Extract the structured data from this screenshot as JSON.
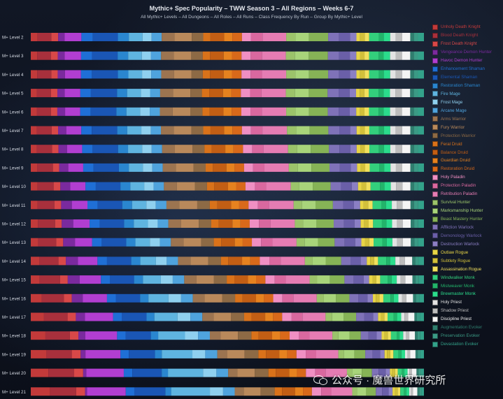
{
  "chart_data": {
    "type": "bar",
    "orientation": "horizontal",
    "stacked": true,
    "normalized": true,
    "title": "Mythic+ Spec Popularity – TWW Season 3 – All Regions – Weeks 6-7",
    "subtitle": "All Mythic+ Levels – All Dungeons – All Roles – All Runs – Class Frequency By Run – Group By Mythic+ Level",
    "legend_position": "right",
    "categories": [
      "M+ Level 2",
      "M+ Level 3",
      "M+ Level 4",
      "M+ Level 5",
      "M+ Level 6",
      "M+ Level 7",
      "M+ Level 8",
      "M+ Level 9",
      "M+ Level 10",
      "M+ Level 11",
      "M+ Level 12",
      "M+ Level 13",
      "M+ Level 14",
      "M+ Level 15",
      "M+ Level 16",
      "M+ Level 17",
      "M+ Level 18",
      "M+ Level 19",
      "M+ Level 20",
      "M+ Level 21"
    ],
    "series": [
      {
        "name": "Unholy Death Knight",
        "color": "#c23a3a",
        "values": [
          1.5,
          1.4,
          1.4,
          1.3,
          1.3,
          1.3,
          1.3,
          1.4,
          1.5,
          1.5,
          1.6,
          1.7,
          2.0,
          2.1,
          2.6,
          3.2,
          3.6,
          3.9,
          4.5,
          5.0
        ]
      },
      {
        "name": "Blood Death Knight",
        "color": "#a8303c",
        "values": [
          3.0,
          3.0,
          3.1,
          3.1,
          3.1,
          3.3,
          3.4,
          3.5,
          3.6,
          3.8,
          3.9,
          4.1,
          4.4,
          4.8,
          5.3,
          5.7,
          6.0,
          6.3,
          6.6,
          6.7
        ]
      },
      {
        "name": "Frost Death Knight",
        "color": "#d84848",
        "values": [
          1.5,
          1.5,
          1.4,
          1.4,
          1.4,
          1.4,
          1.4,
          1.4,
          1.5,
          1.5,
          1.5,
          1.6,
          1.7,
          1.8,
          1.9,
          2.0,
          2.1,
          2.2,
          2.3,
          2.3
        ]
      },
      {
        "name": "Vengeance Demon Hunter",
        "color": "#7a2a9e",
        "values": [
          1.4,
          1.5,
          1.6,
          1.6,
          1.7,
          1.8,
          1.9,
          2.0,
          2.2,
          2.4,
          2.6,
          2.7,
          2.8,
          2.8,
          2.6,
          2.2,
          1.7,
          1.2,
          0.8,
          0.5
        ]
      },
      {
        "name": "Havoc Demon Hunter",
        "color": "#b13ed1",
        "values": [
          3.7,
          3.6,
          3.5,
          3.4,
          3.3,
          3.3,
          3.3,
          3.3,
          3.4,
          3.5,
          3.7,
          3.9,
          4.5,
          5.0,
          5.8,
          6.8,
          7.8,
          8.7,
          9.6,
          10.0
        ]
      },
      {
        "name": "Enhancement Shaman",
        "color": "#1f6fd6",
        "values": [
          2.5,
          2.4,
          2.4,
          2.3,
          2.3,
          2.3,
          2.3,
          2.3,
          2.3,
          2.3,
          2.3,
          2.2,
          2.2,
          2.1,
          2.1,
          2.1,
          2.1,
          2.1,
          2.2,
          2.2
        ]
      },
      {
        "name": "Elemental Shaman",
        "color": "#1a56b5",
        "values": [
          5.5,
          5.6,
          5.7,
          5.7,
          5.6,
          5.6,
          5.6,
          5.6,
          5.5,
          5.5,
          5.5,
          5.6,
          5.6,
          5.7,
          5.8,
          6.0,
          6.2,
          6.5,
          7.5,
          8.0
        ]
      },
      {
        "name": "Restoration Shaman",
        "color": "#2a86cf",
        "values": [
          2.4,
          2.3,
          2.3,
          2.2,
          2.2,
          2.2,
          2.2,
          2.2,
          2.2,
          2.2,
          2.2,
          2.1,
          2.1,
          2.1,
          2.0,
          1.9,
          1.8,
          1.7,
          1.6,
          1.5
        ]
      },
      {
        "name": "Fire Mage",
        "color": "#5fb4e0",
        "values": [
          3.0,
          3.0,
          3.0,
          3.0,
          3.0,
          3.1,
          3.1,
          3.1,
          3.1,
          3.2,
          3.2,
          3.3,
          3.6,
          4.2,
          4.8,
          5.6,
          6.6,
          7.6,
          9.0,
          10.0
        ]
      },
      {
        "name": "Frost Mage",
        "color": "#8fd0ef",
        "values": [
          2.0,
          2.0,
          2.0,
          2.0,
          2.1,
          2.1,
          2.1,
          2.1,
          2.1,
          2.1,
          2.2,
          2.3,
          2.5,
          2.8,
          3.0,
          3.1,
          3.2,
          3.2,
          3.4,
          3.4
        ]
      },
      {
        "name": "Arcane Mage",
        "color": "#4fa3dd",
        "values": [
          2.2,
          2.2,
          2.2,
          2.2,
          2.2,
          2.2,
          2.3,
          2.3,
          2.3,
          2.4,
          2.4,
          2.5,
          2.6,
          2.7,
          2.8,
          2.9,
          2.9,
          3.0,
          3.0,
          3.0
        ]
      },
      {
        "name": "Arms Warrior",
        "color": "#9c7450",
        "values": [
          2.8,
          2.8,
          2.8,
          2.8,
          2.8,
          2.8,
          2.8,
          2.9,
          2.9,
          2.9,
          2.9,
          2.9,
          2.9,
          2.9,
          2.8,
          2.7,
          2.6,
          2.5,
          2.4,
          2.3
        ]
      },
      {
        "name": "Fury Warrior",
        "color": "#b9895b",
        "values": [
          3.8,
          3.8,
          3.8,
          3.8,
          3.9,
          3.9,
          3.9,
          3.9,
          4.0,
          4.0,
          4.0,
          4.0,
          4.1,
          4.1,
          4.2,
          4.2,
          4.3,
          4.3,
          4.4,
          4.4
        ]
      },
      {
        "name": "Protection Warrior",
        "color": "#8d6a45",
        "values": [
          2.5,
          2.5,
          2.5,
          2.5,
          2.6,
          2.6,
          2.6,
          2.7,
          2.7,
          2.8,
          2.8,
          2.9,
          2.9,
          3.0,
          3.1,
          3.2,
          3.3,
          3.4,
          3.5,
          3.6
        ]
      },
      {
        "name": "Feral Druid",
        "color": "#d9721a",
        "values": [
          1.6,
          1.6,
          1.6,
          1.6,
          1.6,
          1.6,
          1.6,
          1.6,
          1.6,
          1.7,
          1.7,
          1.7,
          1.7,
          1.8,
          1.8,
          1.8,
          1.8,
          1.9,
          1.9,
          1.9
        ]
      },
      {
        "name": "Balance Druid",
        "color": "#c25e14",
        "values": [
          3.0,
          3.0,
          3.0,
          3.0,
          3.0,
          3.0,
          3.0,
          3.0,
          3.1,
          3.1,
          3.1,
          3.1,
          3.2,
          3.2,
          3.2,
          3.3,
          3.3,
          3.3,
          3.4,
          3.4
        ]
      },
      {
        "name": "Guardian Druid",
        "color": "#e6821f",
        "values": [
          1.8,
          1.8,
          1.8,
          1.8,
          1.8,
          1.8,
          1.8,
          1.8,
          1.8,
          1.8,
          1.8,
          1.8,
          1.9,
          1.9,
          1.9,
          1.9,
          2.0,
          2.0,
          2.0,
          2.0
        ]
      },
      {
        "name": "Restoration Druid",
        "color": "#d8691a",
        "values": [
          2.1,
          2.1,
          2.1,
          2.1,
          2.1,
          2.1,
          2.1,
          2.1,
          2.1,
          2.1,
          2.1,
          2.1,
          2.2,
          2.2,
          2.2,
          2.2,
          2.3,
          2.3,
          2.3,
          2.3
        ]
      },
      {
        "name": "Holy Paladin",
        "color": "#f08fc3",
        "values": [
          2.0,
          2.0,
          2.0,
          2.0,
          2.0,
          2.0,
          2.0,
          2.0,
          2.1,
          2.1,
          2.1,
          2.1,
          2.2,
          2.2,
          2.2,
          2.3,
          2.3,
          2.3,
          2.4,
          2.4
        ]
      },
      {
        "name": "Protection Paladin",
        "color": "#d9689f",
        "values": [
          2.5,
          2.5,
          2.5,
          2.5,
          2.5,
          2.5,
          2.5,
          2.5,
          2.5,
          2.5,
          2.6,
          2.6,
          2.6,
          2.6,
          2.6,
          2.6,
          2.6,
          2.6,
          2.6,
          2.6
        ]
      },
      {
        "name": "Retribution Paladin",
        "color": "#e57cb3",
        "values": [
          5.2,
          5.2,
          5.3,
          5.3,
          5.3,
          5.4,
          5.4,
          5.4,
          5.5,
          5.5,
          5.5,
          5.5,
          5.6,
          5.6,
          5.6,
          5.6,
          5.6,
          5.5,
          5.5,
          5.4
        ]
      },
      {
        "name": "Survival Hunter",
        "color": "#9bc36a",
        "values": [
          2.0,
          2.0,
          2.0,
          2.0,
          2.0,
          2.0,
          2.0,
          2.0,
          1.9,
          1.9,
          1.9,
          1.9,
          1.8,
          1.8,
          1.7,
          1.6,
          1.5,
          1.4,
          1.3,
          1.2
        ]
      },
      {
        "name": "Marksmanship Hunter",
        "color": "#a8d47a",
        "values": [
          3.0,
          3.0,
          3.0,
          3.0,
          3.0,
          3.0,
          3.0,
          3.0,
          3.0,
          3.0,
          3.0,
          3.0,
          3.0,
          3.0,
          2.9,
          2.8,
          2.7,
          2.6,
          2.5,
          2.4
        ]
      },
      {
        "name": "Beast Mastery Hunter",
        "color": "#86b356",
        "values": [
          4.2,
          4.2,
          4.2,
          4.1,
          4.1,
          4.1,
          4.0,
          4.0,
          4.0,
          3.9,
          3.9,
          3.8,
          3.6,
          3.4,
          3.2,
          3.0,
          2.8,
          2.7,
          2.6,
          2.5
        ]
      },
      {
        "name": "Affliction Warlock",
        "color": "#7f72b8",
        "values": [
          2.4,
          2.4,
          2.4,
          2.4,
          2.4,
          2.4,
          2.3,
          2.3,
          2.3,
          2.3,
          2.3,
          2.3,
          2.2,
          2.2,
          2.1,
          2.0,
          1.9,
          1.8,
          1.7,
          1.6
        ]
      },
      {
        "name": "Demonology Warlock",
        "color": "#6a5fa8",
        "values": [
          2.4,
          2.4,
          2.4,
          2.4,
          2.4,
          2.4,
          2.4,
          2.4,
          2.4,
          2.4,
          2.4,
          2.4,
          2.3,
          2.3,
          2.2,
          2.1,
          2.0,
          1.9,
          1.8,
          1.7
        ]
      },
      {
        "name": "Destruction Warlock",
        "color": "#8b7fc4",
        "values": [
          1.4,
          1.4,
          1.4,
          1.4,
          1.4,
          1.4,
          1.4,
          1.4,
          1.4,
          1.4,
          1.4,
          1.4,
          1.4,
          1.3,
          1.3,
          1.2,
          1.2,
          1.1,
          1.1,
          1.0
        ]
      },
      {
        "name": "Outlaw Rogue",
        "color": "#e8d546",
        "values": [
          0.8,
          0.8,
          0.8,
          0.8,
          0.8,
          0.8,
          0.8,
          0.8,
          0.8,
          0.8,
          0.8,
          0.8,
          0.8,
          0.8,
          0.7,
          0.7,
          0.7,
          0.6,
          0.6,
          0.6
        ]
      },
      {
        "name": "Subtlety Rogue",
        "color": "#d2c03a",
        "values": [
          1.0,
          1.0,
          1.0,
          1.0,
          1.0,
          1.0,
          1.0,
          1.0,
          1.0,
          1.0,
          1.0,
          1.0,
          0.9,
          0.9,
          0.9,
          0.8,
          0.8,
          0.8,
          0.7,
          0.7
        ]
      },
      {
        "name": "Assassination Rogue",
        "color": "#f2e05c",
        "values": [
          1.0,
          1.0,
          1.0,
          1.0,
          1.0,
          1.0,
          1.0,
          1.0,
          1.0,
          1.0,
          1.0,
          1.0,
          0.9,
          0.9,
          0.9,
          0.8,
          0.8,
          0.8,
          0.7,
          0.7
        ]
      },
      {
        "name": "Windwalker Monk",
        "color": "#33cf7c",
        "values": [
          2.1,
          2.1,
          2.1,
          2.1,
          2.1,
          2.1,
          2.1,
          2.1,
          2.1,
          2.0,
          2.0,
          2.0,
          1.9,
          1.8,
          1.7,
          1.5,
          1.4,
          1.3,
          1.1,
          1.0
        ]
      },
      {
        "name": "Mistweaver Monk",
        "color": "#22b46a",
        "values": [
          1.1,
          1.1,
          1.1,
          1.1,
          1.1,
          1.1,
          1.1,
          1.1,
          1.0,
          1.0,
          1.0,
          1.0,
          0.9,
          0.9,
          0.8,
          0.8,
          0.7,
          0.7,
          0.6,
          0.6
        ]
      },
      {
        "name": "Brewmaster Monk",
        "color": "#2bdc8c",
        "values": [
          1.4,
          1.4,
          1.4,
          1.4,
          1.4,
          1.4,
          1.4,
          1.4,
          1.4,
          1.3,
          1.3,
          1.3,
          1.2,
          1.2,
          1.1,
          1.0,
          0.9,
          0.9,
          0.8,
          0.7
        ]
      },
      {
        "name": "Holy Priest",
        "color": "#e3e3e3",
        "values": [
          1.2,
          1.2,
          1.2,
          1.2,
          1.2,
          1.2,
          1.2,
          1.2,
          1.2,
          1.1,
          1.1,
          1.1,
          1.0,
          0.9,
          0.9,
          0.8,
          0.7,
          0.6,
          0.5,
          0.5
        ]
      },
      {
        "name": "Shadow Priest",
        "color": "#bdbdbd",
        "values": [
          1.4,
          1.4,
          1.4,
          1.4,
          1.4,
          1.4,
          1.4,
          1.4,
          1.4,
          1.3,
          1.3,
          1.3,
          1.2,
          1.1,
          1.0,
          0.9,
          0.8,
          0.7,
          0.6,
          0.5
        ]
      },
      {
        "name": "Discipline Priest",
        "color": "#f4f4f4",
        "values": [
          1.8,
          1.8,
          1.8,
          1.8,
          1.8,
          1.8,
          1.8,
          1.8,
          1.8,
          1.8,
          1.8,
          1.8,
          1.7,
          1.7,
          1.6,
          1.5,
          1.4,
          1.3,
          1.2,
          1.1
        ]
      },
      {
        "name": "Augmentation Evoker",
        "color": "#2f7d6e",
        "values": [
          0.8,
          0.8,
          0.8,
          0.8,
          0.8,
          0.8,
          0.8,
          0.8,
          0.8,
          0.8,
          0.8,
          0.8,
          0.7,
          0.7,
          0.7,
          0.6,
          0.6,
          0.6,
          0.5,
          0.5
        ]
      },
      {
        "name": "Preservation Evoker",
        "color": "#3b9a85",
        "values": [
          0.9,
          0.9,
          0.9,
          0.9,
          0.9,
          0.9,
          0.9,
          0.9,
          0.9,
          0.9,
          0.9,
          0.9,
          0.8,
          0.8,
          0.8,
          0.7,
          0.7,
          0.6,
          0.6,
          0.5
        ]
      },
      {
        "name": "Devastation Evoker",
        "color": "#33a28a",
        "values": [
          1.3,
          1.3,
          1.3,
          1.3,
          1.3,
          1.3,
          1.3,
          1.3,
          1.3,
          1.3,
          1.3,
          1.3,
          1.2,
          1.2,
          1.1,
          1.0,
          0.9,
          0.9,
          0.8,
          0.7
        ]
      }
    ]
  },
  "watermark": {
    "text": "公众号 · 魔兽世界研究所",
    "icon": "wechat-icon"
  }
}
